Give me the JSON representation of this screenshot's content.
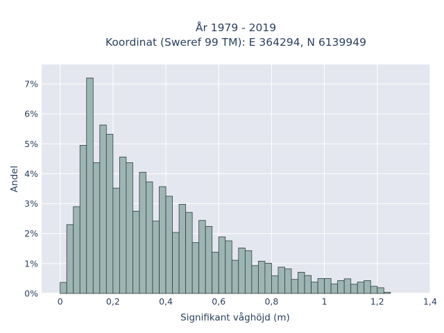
{
  "chart_data": {
    "type": "bar",
    "title": [
      "År 1979 - 2019",
      "Koordinat (Sweref 99 TM): E 364294, N 6139949"
    ],
    "xlabel": "Signifikant våghöjd (m)",
    "ylabel": "Andel",
    "xlim": [
      -0.07,
      1.4
    ],
    "ylim": [
      0,
      0.0765
    ],
    "xticks": [
      0,
      0.2,
      0.4,
      0.6,
      0.8,
      1,
      1.2,
      1.4
    ],
    "xtick_labels": [
      "0",
      "0,2",
      "0,4",
      "0,6",
      "0,8",
      "1",
      "1,2",
      "1,4"
    ],
    "yticks": [
      0,
      0.01,
      0.02,
      0.03,
      0.04,
      0.05,
      0.06,
      0.07
    ],
    "ytick_labels": [
      "0%",
      "1%",
      "2%",
      "3%",
      "4%",
      "5%",
      "6%",
      "7%"
    ],
    "grid": true,
    "bin_width": 0.025,
    "bin_start": 0.0,
    "values": [
      0.0037,
      0.023,
      0.029,
      0.0495,
      0.072,
      0.0437,
      0.0563,
      0.0532,
      0.0352,
      0.0456,
      0.0437,
      0.0275,
      0.0405,
      0.0373,
      0.0242,
      0.0357,
      0.0325,
      0.0204,
      0.0298,
      0.0271,
      0.017,
      0.0244,
      0.0224,
      0.0138,
      0.0189,
      0.0176,
      0.0111,
      0.0152,
      0.0143,
      0.0093,
      0.0108,
      0.0101,
      0.0059,
      0.0088,
      0.0082,
      0.0047,
      0.0071,
      0.006,
      0.0038,
      0.005,
      0.005,
      0.0032,
      0.0043,
      0.0049,
      0.0031,
      0.0038,
      0.0043,
      0.0024,
      0.0019,
      0.0004
    ],
    "colors": {
      "bar_fill": "#9db5b3",
      "bar_stroke": "#2f3f3e",
      "plot_bg": "#e5e7f0",
      "grid": "#ffffff"
    }
  }
}
